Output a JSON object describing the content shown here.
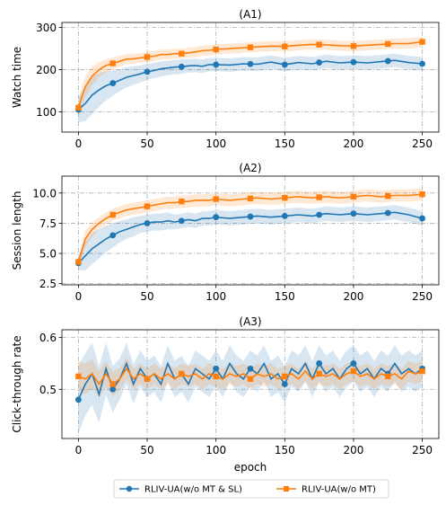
{
  "colors": {
    "series1": "#1f77b4",
    "series2": "#ff7f0e",
    "grid": "#b0b0b0"
  },
  "chart_data": [
    {
      "type": "line",
      "title": "(A1)",
      "xlabel": "",
      "ylabel": "Watch time",
      "xlim": [
        -12,
        262
      ],
      "ylim": [
        52,
        312
      ],
      "xticks": [
        0,
        50,
        100,
        150,
        200,
        250
      ],
      "yticks": [
        100,
        200,
        300
      ],
      "grid": true,
      "series": [
        {
          "name": "RLIV-UA(w/o MT & SL)",
          "color": "#1f77b4",
          "marker": "circle",
          "x": [
            0,
            5,
            10,
            15,
            20,
            25,
            30,
            35,
            40,
            45,
            50,
            55,
            60,
            65,
            70,
            75,
            80,
            85,
            90,
            95,
            100,
            110,
            120,
            130,
            140,
            150,
            160,
            170,
            180,
            190,
            200,
            210,
            220,
            230,
            240,
            250
          ],
          "y": [
            105,
            120,
            140,
            152,
            162,
            168,
            175,
            182,
            186,
            190,
            195,
            198,
            202,
            204,
            206,
            207,
            209,
            210,
            208,
            212,
            212,
            211,
            214,
            213,
            218,
            212,
            217,
            214,
            220,
            216,
            218,
            216,
            219,
            222,
            217,
            214
          ],
          "band": [
            30,
            42,
            45,
            40,
            35,
            30,
            26,
            24,
            22,
            20,
            19,
            18,
            18,
            17,
            17,
            17,
            16,
            16,
            16,
            16,
            16,
            16,
            16,
            16,
            16,
            16,
            16,
            16,
            16,
            16,
            16,
            16,
            16,
            16,
            16,
            16
          ],
          "markers_x": [
            0,
            25,
            50,
            75,
            100,
            125,
            150,
            175,
            200,
            225,
            250
          ]
        },
        {
          "name": "RLIV-UA(w/o MT)",
          "color": "#ff7f0e",
          "marker": "square",
          "x": [
            0,
            5,
            10,
            15,
            20,
            25,
            30,
            35,
            40,
            45,
            50,
            55,
            60,
            65,
            70,
            75,
            80,
            85,
            90,
            95,
            100,
            110,
            120,
            130,
            140,
            150,
            160,
            170,
            180,
            190,
            200,
            210,
            220,
            230,
            240,
            250
          ],
          "y": [
            110,
            160,
            185,
            200,
            210,
            215,
            220,
            225,
            226,
            228,
            230,
            232,
            236,
            236,
            238,
            238,
            240,
            242,
            245,
            246,
            248,
            250,
            252,
            254,
            256,
            255,
            258,
            260,
            259,
            257,
            256,
            258,
            260,
            262,
            262,
            266
          ],
          "band": [
            20,
            25,
            22,
            18,
            15,
            14,
            13,
            12,
            12,
            12,
            12,
            12,
            12,
            12,
            12,
            12,
            12,
            12,
            12,
            12,
            12,
            12,
            12,
            12,
            12,
            12,
            12,
            12,
            12,
            12,
            12,
            12,
            12,
            12,
            12,
            12
          ],
          "markers_x": [
            0,
            25,
            50,
            75,
            100,
            125,
            150,
            175,
            200,
            225,
            250
          ]
        }
      ]
    },
    {
      "type": "line",
      "title": "(A2)",
      "xlabel": "",
      "ylabel": "Session length",
      "xlim": [
        -12,
        262
      ],
      "ylim": [
        2.4,
        11.4
      ],
      "xticks": [
        0,
        50,
        100,
        150,
        200,
        250
      ],
      "yticks": [
        2.5,
        5.0,
        7.5,
        10.0
      ],
      "grid": true,
      "series": [
        {
          "name": "RLIV-UA(w/o MT & SL)",
          "color": "#1f77b4",
          "marker": "circle",
          "x": [
            0,
            5,
            10,
            15,
            20,
            25,
            30,
            35,
            40,
            45,
            50,
            55,
            60,
            65,
            70,
            75,
            80,
            85,
            90,
            95,
            100,
            110,
            120,
            130,
            140,
            150,
            160,
            170,
            180,
            190,
            200,
            210,
            220,
            230,
            240,
            250
          ],
          "y": [
            4.2,
            4.8,
            5.4,
            5.8,
            6.2,
            6.5,
            6.8,
            7.0,
            7.2,
            7.4,
            7.5,
            7.6,
            7.6,
            7.7,
            7.6,
            7.7,
            7.8,
            7.7,
            7.9,
            7.9,
            8.0,
            7.9,
            8.0,
            8.1,
            8.0,
            8.1,
            8.2,
            8.1,
            8.3,
            8.2,
            8.3,
            8.2,
            8.3,
            8.4,
            8.2,
            7.9
          ],
          "band": [
            0.6,
            1.2,
            1.3,
            1.2,
            1.1,
            1.0,
            0.9,
            0.8,
            0.8,
            0.7,
            0.7,
            0.7,
            0.7,
            0.7,
            0.6,
            0.6,
            0.6,
            0.6,
            0.6,
            0.6,
            0.6,
            0.6,
            0.6,
            0.6,
            0.6,
            0.6,
            0.6,
            0.6,
            0.6,
            0.6,
            0.6,
            0.6,
            0.6,
            0.6,
            0.6,
            0.6
          ],
          "markers_x": [
            0,
            25,
            50,
            75,
            100,
            125,
            150,
            175,
            200,
            225,
            250
          ]
        },
        {
          "name": "RLIV-UA(w/o MT)",
          "color": "#ff7f0e",
          "marker": "square",
          "x": [
            0,
            5,
            10,
            15,
            20,
            25,
            30,
            35,
            40,
            45,
            50,
            55,
            60,
            65,
            70,
            75,
            80,
            85,
            90,
            95,
            100,
            110,
            120,
            130,
            140,
            150,
            160,
            170,
            180,
            190,
            200,
            210,
            220,
            230,
            240,
            250
          ],
          "y": [
            4.3,
            6.2,
            7.0,
            7.5,
            7.9,
            8.2,
            8.4,
            8.6,
            8.7,
            8.8,
            8.9,
            9.0,
            9.1,
            9.2,
            9.2,
            9.3,
            9.3,
            9.4,
            9.4,
            9.4,
            9.5,
            9.4,
            9.5,
            9.6,
            9.5,
            9.6,
            9.7,
            9.6,
            9.7,
            9.6,
            9.7,
            9.8,
            9.7,
            9.8,
            9.8,
            9.9
          ],
          "band": [
            0.5,
            0.7,
            0.6,
            0.5,
            0.5,
            0.5,
            0.5,
            0.5,
            0.5,
            0.5,
            0.5,
            0.5,
            0.5,
            0.5,
            0.5,
            0.5,
            0.5,
            0.5,
            0.5,
            0.5,
            0.5,
            0.5,
            0.5,
            0.5,
            0.5,
            0.5,
            0.5,
            0.5,
            0.5,
            0.5,
            0.5,
            0.5,
            0.5,
            0.5,
            0.5,
            0.5
          ],
          "markers_x": [
            0,
            25,
            50,
            75,
            100,
            125,
            150,
            175,
            200,
            225,
            250
          ]
        }
      ]
    },
    {
      "type": "line",
      "title": "(A3)",
      "xlabel": "epoch",
      "ylabel": "Click-through rate",
      "xlim": [
        -12,
        262
      ],
      "ylim": [
        0.405,
        0.615
      ],
      "xticks": [
        0,
        50,
        100,
        150,
        200,
        250
      ],
      "yticks": [
        0.5,
        0.6
      ],
      "grid": true,
      "series": [
        {
          "name": "RLIV-UA(w/o MT & SL)",
          "color": "#1f77b4",
          "marker": "circle",
          "x": [
            0,
            5,
            10,
            15,
            20,
            25,
            30,
            35,
            40,
            45,
            50,
            55,
            60,
            65,
            70,
            75,
            80,
            85,
            90,
            95,
            100,
            105,
            110,
            115,
            120,
            125,
            130,
            135,
            140,
            145,
            150,
            155,
            160,
            165,
            170,
            175,
            180,
            185,
            190,
            195,
            200,
            205,
            210,
            215,
            220,
            225,
            230,
            235,
            240,
            245,
            250
          ],
          "y": [
            0.48,
            0.51,
            0.53,
            0.49,
            0.54,
            0.5,
            0.52,
            0.55,
            0.51,
            0.54,
            0.52,
            0.53,
            0.51,
            0.55,
            0.52,
            0.53,
            0.51,
            0.54,
            0.53,
            0.52,
            0.54,
            0.52,
            0.55,
            0.53,
            0.52,
            0.54,
            0.53,
            0.55,
            0.52,
            0.53,
            0.51,
            0.54,
            0.53,
            0.55,
            0.52,
            0.55,
            0.53,
            0.54,
            0.52,
            0.54,
            0.55,
            0.53,
            0.54,
            0.52,
            0.54,
            0.53,
            0.55,
            0.53,
            0.54,
            0.53,
            0.54
          ],
          "band": [
            0.065,
            0.06,
            0.06,
            0.055,
            0.05,
            0.045,
            0.04,
            0.04,
            0.038,
            0.035,
            0.035,
            0.035,
            0.035,
            0.035,
            0.035,
            0.035,
            0.035,
            0.035,
            0.035,
            0.035,
            0.035,
            0.035,
            0.035,
            0.035,
            0.035,
            0.035,
            0.035,
            0.035,
            0.035,
            0.035,
            0.035,
            0.035,
            0.035,
            0.035,
            0.035,
            0.035,
            0.035,
            0.035,
            0.035,
            0.035,
            0.035,
            0.035,
            0.035,
            0.035,
            0.035,
            0.035,
            0.035,
            0.035,
            0.035,
            0.035,
            0.035
          ],
          "markers_x": [
            0,
            25,
            50,
            75,
            100,
            125,
            150,
            175,
            200,
            225,
            250
          ]
        },
        {
          "name": "RLIV-UA(w/o MT)",
          "color": "#ff7f0e",
          "marker": "square",
          "x": [
            0,
            5,
            10,
            15,
            20,
            25,
            30,
            35,
            40,
            45,
            50,
            55,
            60,
            65,
            70,
            75,
            80,
            85,
            90,
            95,
            100,
            105,
            110,
            115,
            120,
            125,
            130,
            135,
            140,
            145,
            150,
            155,
            160,
            165,
            170,
            175,
            180,
            185,
            190,
            195,
            200,
            205,
            210,
            215,
            220,
            225,
            230,
            235,
            240,
            245,
            250
          ],
          "y": [
            0.525,
            0.52,
            0.53,
            0.51,
            0.53,
            0.51,
            0.52,
            0.54,
            0.52,
            0.53,
            0.52,
            0.53,
            0.52,
            0.53,
            0.52,
            0.53,
            0.525,
            0.53,
            0.52,
            0.53,
            0.525,
            0.52,
            0.53,
            0.525,
            0.53,
            0.52,
            0.53,
            0.525,
            0.53,
            0.52,
            0.525,
            0.53,
            0.52,
            0.535,
            0.52,
            0.53,
            0.525,
            0.53,
            0.52,
            0.53,
            0.535,
            0.525,
            0.53,
            0.52,
            0.53,
            0.525,
            0.53,
            0.52,
            0.535,
            0.53,
            0.535
          ],
          "band": [
            0.03,
            0.03,
            0.028,
            0.026,
            0.025,
            0.024,
            0.022,
            0.022,
            0.02,
            0.02,
            0.02,
            0.02,
            0.02,
            0.02,
            0.02,
            0.02,
            0.02,
            0.02,
            0.02,
            0.02,
            0.02,
            0.02,
            0.02,
            0.02,
            0.02,
            0.02,
            0.02,
            0.02,
            0.02,
            0.02,
            0.02,
            0.02,
            0.02,
            0.02,
            0.02,
            0.02,
            0.02,
            0.02,
            0.02,
            0.02,
            0.02,
            0.02,
            0.02,
            0.02,
            0.02,
            0.02,
            0.02,
            0.02,
            0.02,
            0.02,
            0.02
          ],
          "markers_x": [
            0,
            25,
            50,
            75,
            100,
            125,
            150,
            175,
            200,
            225,
            250
          ]
        }
      ]
    }
  ],
  "legend": {
    "placement": "bottom-center",
    "items": [
      "RLIV-UA(w/o MT & SL)",
      "RLIV-UA(w/o MT)"
    ]
  }
}
